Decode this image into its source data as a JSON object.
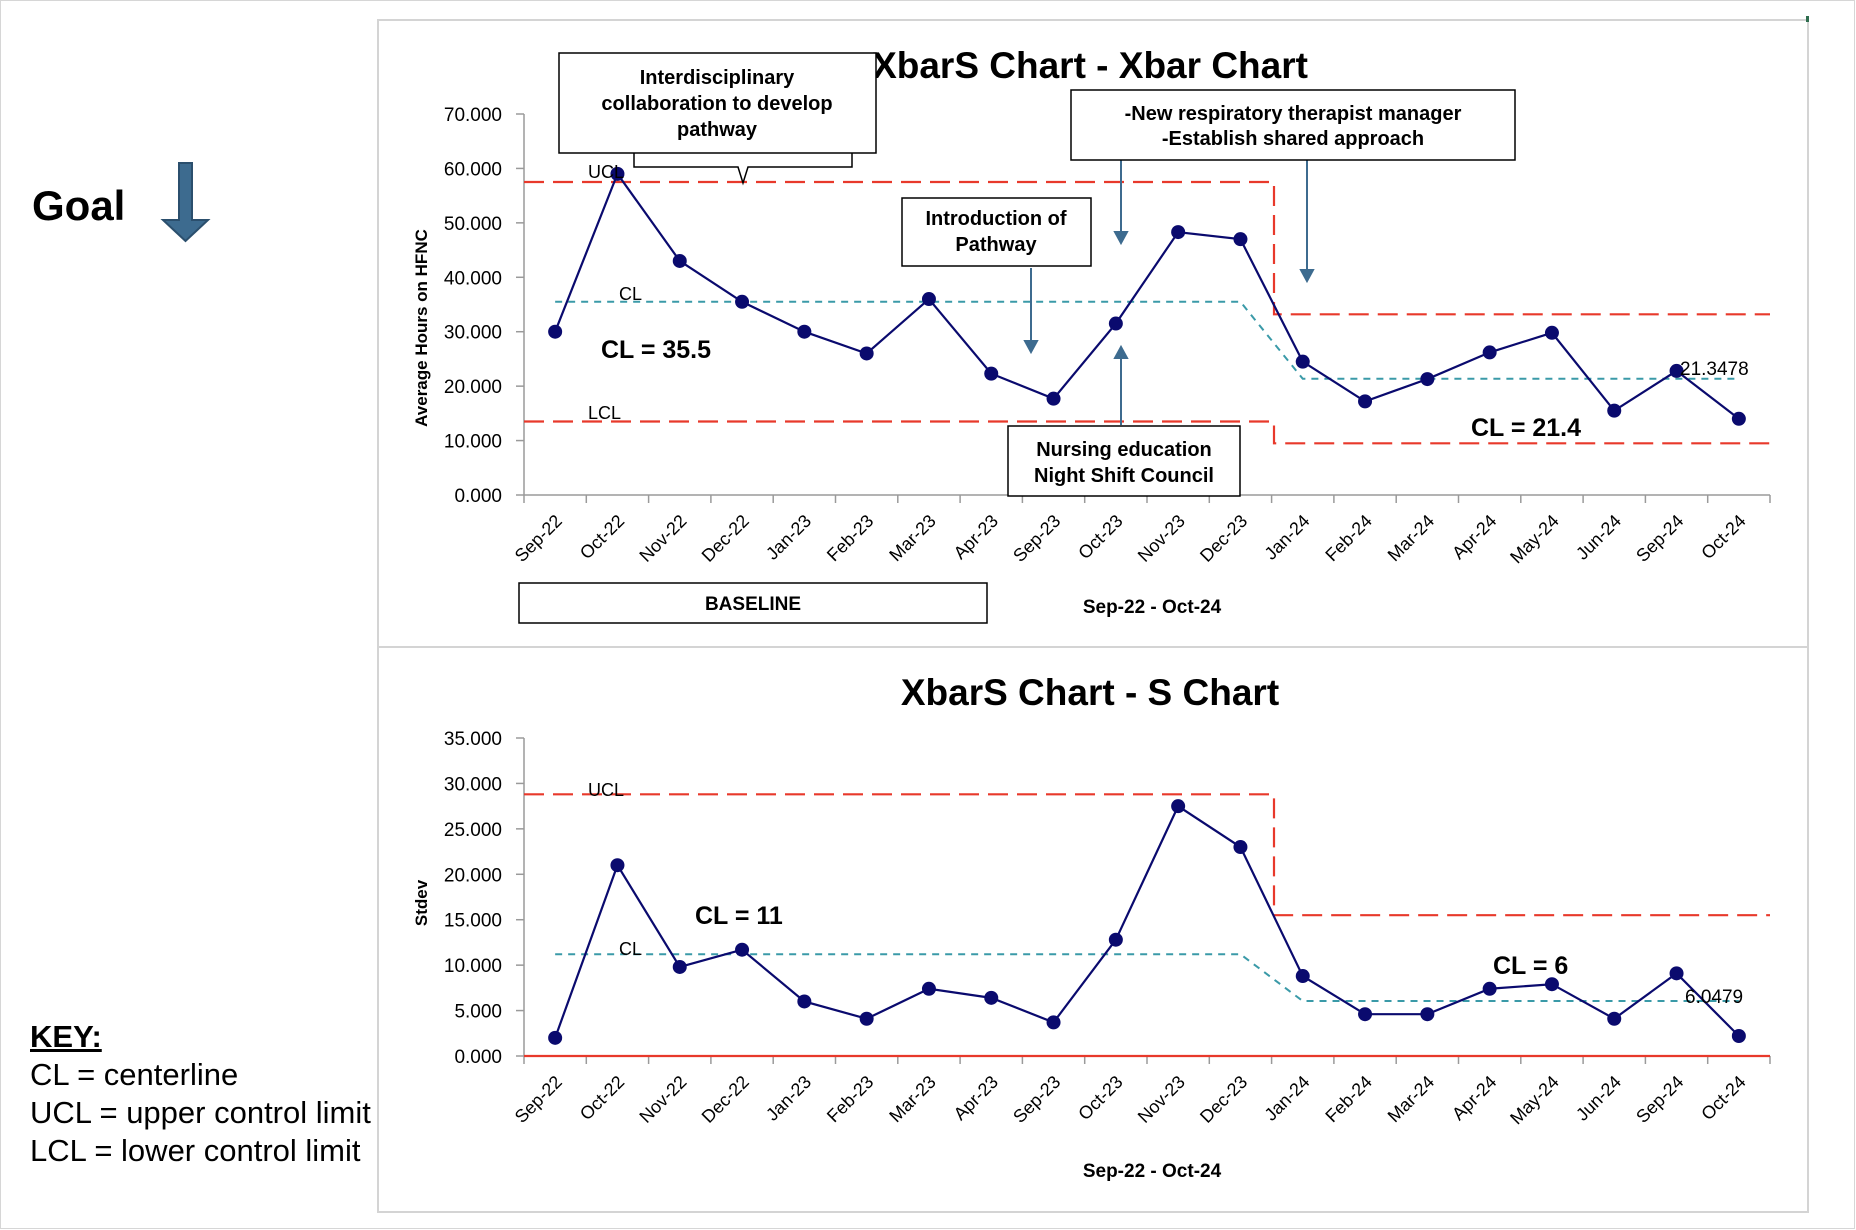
{
  "goal": {
    "label": "Goal",
    "arrow_icon": "arrow-down-icon",
    "arrow_color": "#3d6b8f"
  },
  "key": {
    "title": "KEY:",
    "items": [
      "CL = centerline",
      "UCL = upper control limit",
      "LCL = lower control limit"
    ]
  },
  "colors": {
    "series": "#0a0a6e",
    "control_limit": "#e8392b",
    "centerline": "#3a9aa8",
    "annotation_arrow": "#3d6b8f",
    "axis": "#9a9a9a"
  },
  "chart_data": [
    {
      "type": "line",
      "title": "XbarS Chart - Xbar Chart",
      "xlabel": "Sep-22 - Oct-24",
      "ylabel": "Average Hours on HFNC",
      "ylim": [
        0,
        70
      ],
      "yticks": [
        "0.000",
        "10.000",
        "20.000",
        "30.000",
        "40.000",
        "50.000",
        "60.000",
        "70.000"
      ],
      "categories": [
        "Sep-22",
        "Oct-22",
        "Nov-22",
        "Dec-22",
        "Jan-23",
        "Feb-23",
        "Mar-23",
        "Apr-23",
        "Sep-23",
        "Oct-23",
        "Nov-23",
        "Dec-23",
        "Jan-24",
        "Feb-24",
        "Mar-24",
        "Apr-24",
        "May-24",
        "Jun-24",
        "Sep-24",
        "Oct-24"
      ],
      "values": [
        30.0,
        59.0,
        43.0,
        35.5,
        30.0,
        26.0,
        36.0,
        22.3,
        17.7,
        31.5,
        48.3,
        47.0,
        24.5,
        17.2,
        21.3,
        26.2,
        29.8,
        15.5,
        22.8,
        14.0
      ],
      "grid": false,
      "phases": [
        {
          "from": "Sep-22",
          "to": "Dec-23",
          "ucl": 57.5,
          "cl": 35.5,
          "lcl": 13.5
        },
        {
          "from": "Jan-24",
          "to": "Oct-24",
          "ucl": 33.2,
          "cl": 21.3478,
          "lcl": 9.5
        }
      ],
      "line_labels": {
        "ucl": "UCL",
        "cl": "CL",
        "lcl": "LCL"
      },
      "cl_annotations": [
        "CL = 35.5",
        "CL = 21.4"
      ],
      "end_value_label": "21.3478",
      "annotations": [
        "Interdisciplinary collaboration to develop pathway",
        "Introduction of Pathway",
        "-New respiratory therapist manager",
        "-Establish shared approach",
        "Nursing education",
        "Night Shift Council"
      ],
      "baseline_label": "BASELINE"
    },
    {
      "type": "line",
      "title": "XbarS Chart - S Chart",
      "xlabel": "Sep-22 - Oct-24",
      "ylabel": "Stdev",
      "ylim": [
        0,
        35
      ],
      "yticks": [
        "0.000",
        "5.000",
        "10.000",
        "15.000",
        "20.000",
        "25.000",
        "30.000",
        "35.000"
      ],
      "categories": [
        "Sep-22",
        "Oct-22",
        "Nov-22",
        "Dec-22",
        "Jan-23",
        "Feb-23",
        "Mar-23",
        "Apr-23",
        "Sep-23",
        "Oct-23",
        "Nov-23",
        "Dec-23",
        "Jan-24",
        "Feb-24",
        "Mar-24",
        "Apr-24",
        "May-24",
        "Jun-24",
        "Sep-24",
        "Oct-24"
      ],
      "values": [
        2.0,
        21.0,
        9.8,
        11.7,
        6.0,
        4.1,
        7.4,
        6.4,
        3.7,
        12.8,
        27.5,
        23.0,
        8.8,
        4.6,
        4.6,
        7.4,
        7.9,
        4.1,
        9.1,
        2.2
      ],
      "grid": false,
      "phases": [
        {
          "from": "Sep-22",
          "to": "Dec-23",
          "ucl": 28.8,
          "cl": 11.2,
          "lcl": 0.0
        },
        {
          "from": "Jan-24",
          "to": "Oct-24",
          "ucl": 15.5,
          "cl": 6.0479,
          "lcl": 0.0
        }
      ],
      "line_labels": {
        "ucl": "UCL",
        "cl": "CL"
      },
      "cl_annotations": [
        "CL = 11",
        "CL = 6"
      ],
      "end_value_label": "6.0479"
    }
  ]
}
